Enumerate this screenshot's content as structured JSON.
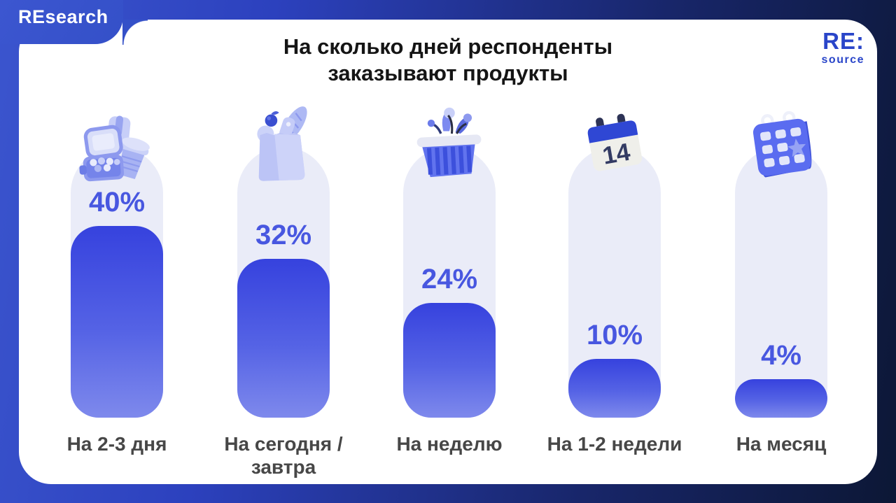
{
  "brand": {
    "tab_label": "REsearch",
    "logo_line1": "RE:",
    "logo_line2": "source"
  },
  "title_lines": {
    "line1": "На сколько дней респонденты",
    "line2": "заказывают продукты"
  },
  "chart_data": {
    "type": "bar",
    "orientation": "vertical",
    "title": "На сколько дней респонденты заказывают продукты",
    "unit": "%",
    "categories": [
      "На 2-3 дня",
      "На сегодня / завтра",
      "На неделю",
      "На 1-2 недели",
      "На месяц"
    ],
    "values": [
      40,
      32,
      24,
      10,
      4
    ],
    "items": [
      {
        "label": "На 2-3 дня",
        "value": 40,
        "value_label": "40%",
        "icon": "lunchbox-coffee"
      },
      {
        "label": "На сегодня / завтра",
        "value": 32,
        "value_label": "32%",
        "icon": "grocery-bag"
      },
      {
        "label": "На неделю",
        "value": 24,
        "value_label": "24%",
        "icon": "shopping-basket"
      },
      {
        "label": "На 1-2 недели",
        "value": 10,
        "value_label": "10%",
        "icon": "calendar-14"
      },
      {
        "label": "На месяц",
        "value": 4,
        "value_label": "4%",
        "icon": "calendar-month"
      }
    ],
    "colors": {
      "background_top_left": "#3B55CE",
      "background_bottom_right": "#0C1735",
      "card": "#FFFFFF",
      "track": "#EAECF8",
      "bar_gradient_top": "#3642DE",
      "bar_gradient_bottom": "#7E89EC",
      "value_text": "#4857E0",
      "category_text": "#474747",
      "logo_text": "#2945C9"
    },
    "legend": "none",
    "grid": false
  }
}
